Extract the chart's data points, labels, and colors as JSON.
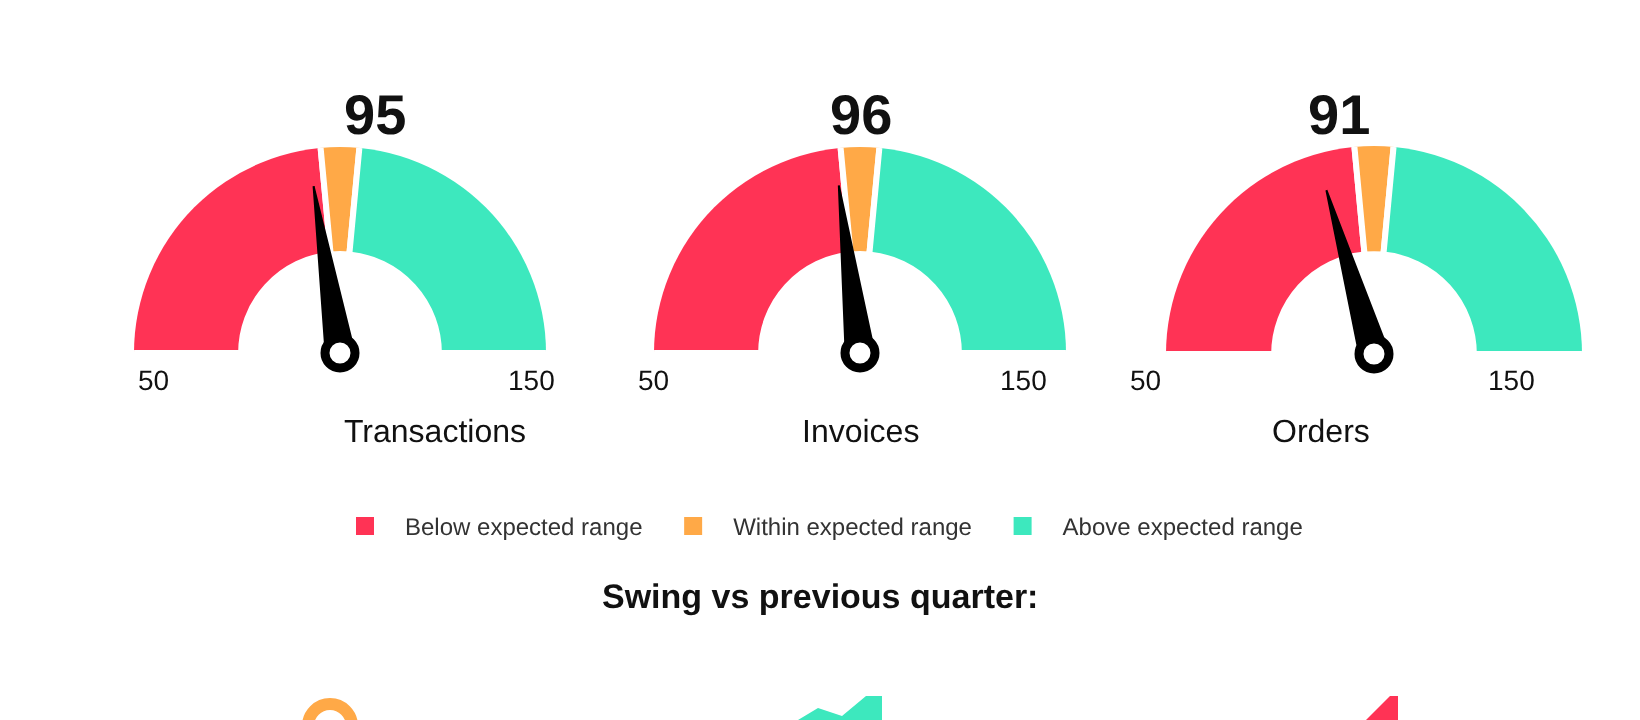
{
  "chart_data": [
    {
      "type": "donut",
      "title": "95",
      "xlabel": "Transactions",
      "categories": [
        null,
        null,
        null
      ],
      "values": [
        47,
        6,
        47
      ],
      "colors": [
        "#ff3355",
        "#ffa947",
        "#3de8be"
      ],
      "annotations": [
        "50",
        "150"
      ],
      "legend": false
    },
    {
      "type": "donut",
      "title": "96",
      "xlabel": "Invoices",
      "categories": [
        "Below expected range",
        "Within expected range",
        "Above expected range"
      ],
      "values": [
        47,
        6,
        47
      ],
      "colors": [
        "#ff3355",
        "#ffa947",
        "#3de8be"
      ],
      "needle": "Below expected range",
      "legend": "bottom",
      "annotations": [
        "50",
        "150",
        "Swing vs previous quarter:"
      ]
    },
    {
      "type": "donut",
      "title": "91",
      "xlabel": "Orders",
      "categories": [
        null,
        null,
        null
      ],
      "values": [
        47,
        6,
        47
      ],
      "colors": [
        "#ff3355",
        "#ffa947",
        "#3de8be"
      ],
      "annotations": [
        "50",
        "150"
      ],
      "legend": false
    }
  ]
}
